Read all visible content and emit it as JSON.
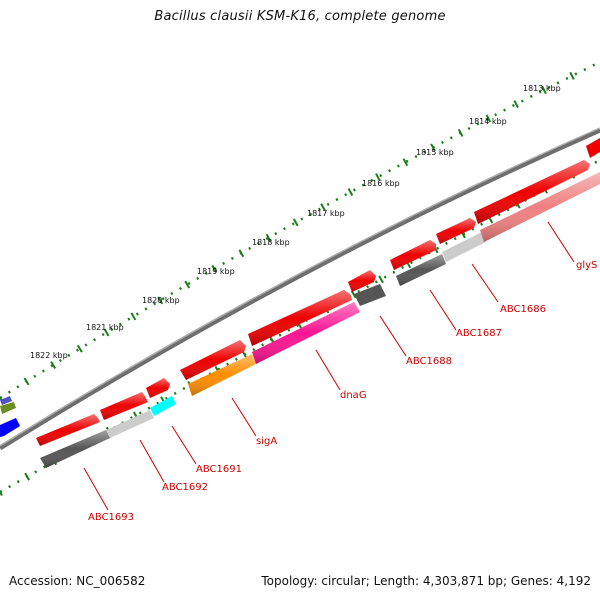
{
  "title": "Bacillus clausii KSM-K16, complete genome",
  "footer": {
    "accession": "Accession: NC_006582",
    "topology": "Topology: circular; Length: 4,303,871 bp; Genes: 4,192"
  },
  "colors": {
    "backbone": "#777777",
    "tick": "#1a7f1a",
    "label": "#cc0000",
    "feature_forward": "#ee0000",
    "cds_reverse": "#f08080",
    "gene_grey": "#555555",
    "gene_lightgrey": "#cccccc",
    "gene_pink": "#ff1493",
    "gene_orange": "#ff8c00",
    "gene_cyan": "#00ffff",
    "gene_blue": "#0000ff",
    "gene_olive": "#6b8e23"
  },
  "ruler": [
    {
      "label": "1813 kbp"
    },
    {
      "label": "1814 kbp"
    },
    {
      "label": "1815 kbp"
    },
    {
      "label": "1816 kbp"
    },
    {
      "label": "1817 kbp"
    },
    {
      "label": "1818 kbp"
    },
    {
      "label": "1819 kbp"
    },
    {
      "label": "1820 kbp"
    },
    {
      "label": "1821 kbp"
    },
    {
      "label": "1822 kbp"
    }
  ],
  "genes": [
    {
      "label": "glyS"
    },
    {
      "label": "ABC1686"
    },
    {
      "label": "ABC1687"
    },
    {
      "label": "ABC1688"
    },
    {
      "label": "dnaG"
    },
    {
      "label": "sigA"
    },
    {
      "label": "ABC1691"
    },
    {
      "label": "ABC1692"
    },
    {
      "label": "ABC1693"
    }
  ]
}
